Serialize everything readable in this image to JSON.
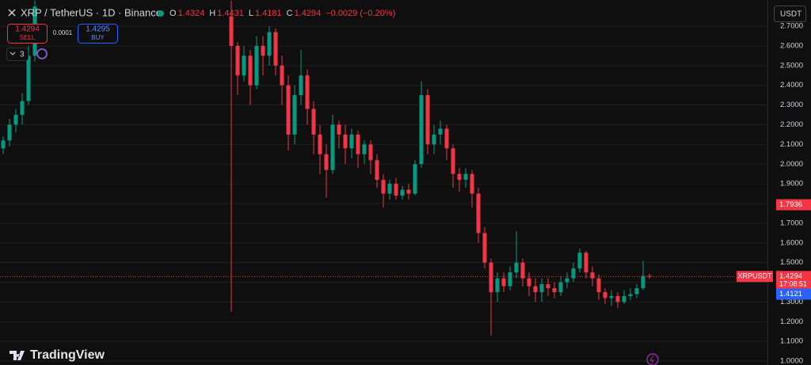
{
  "chart_data": {
    "type": "candlestick",
    "title": "XRP / TetherUS · 1D · Binance",
    "legend_ohlc": [
      {
        "label": "O",
        "value": 1.4324
      },
      {
        "label": "H",
        "value": 1.4431
      },
      {
        "label": "L",
        "value": 1.4181
      },
      {
        "label": "C",
        "value": 1.4294
      }
    ],
    "change": "−0.0029 (−0.20%)",
    "sell": {
      "price": 1.4294,
      "label": "SELL"
    },
    "spread": 0.0001,
    "buy": {
      "price": 1.4295,
      "label": "BUY"
    },
    "indicator_count": 3,
    "currency": "USDT",
    "brand": "TradingView",
    "up_color": "#089981",
    "down_color": "#f23645",
    "ylim": [
      0.98,
      2.833
    ],
    "yticks": [
      {
        "value": 1.0,
        "label": "1.0000"
      },
      {
        "value": 1.1,
        "label": "1.1000"
      },
      {
        "value": 1.2,
        "label": "1.2000"
      },
      {
        "value": 1.3,
        "label": "1.3000"
      },
      {
        "value": 1.4,
        "label": "1.4000"
      },
      {
        "value": 1.5,
        "label": "1.5000"
      },
      {
        "value": 1.6,
        "label": "1.6000"
      },
      {
        "value": 1.7,
        "label": "1.7000"
      },
      {
        "value": 1.8,
        "label": "1.8000"
      },
      {
        "value": 1.9,
        "label": "1.9000"
      },
      {
        "value": 2.0,
        "label": "2.0000"
      },
      {
        "value": 2.1,
        "label": "2.1000"
      },
      {
        "value": 2.2,
        "label": "2.2000"
      },
      {
        "value": 2.3,
        "label": "2.3000"
      },
      {
        "value": 2.4,
        "label": "2.4000"
      },
      {
        "value": 2.5,
        "label": "2.5000"
      },
      {
        "value": 2.6,
        "label": "2.6000"
      },
      {
        "value": 2.7,
        "label": "2.7000"
      }
    ],
    "grid": true,
    "price_tags": [
      {
        "value": 1.7936,
        "color": "#f23645"
      },
      {
        "name": "XRPUSDT",
        "value": 1.4294,
        "countdown": "17:08:51",
        "color": "#f23645"
      },
      {
        "value": 1.4121,
        "color": "#2962ff"
      }
    ],
    "series": {
      "open": [
        2.08,
        2.12,
        2.2,
        2.25,
        2.32,
        2.55,
        null,
        null,
        null,
        null,
        null,
        null,
        null,
        null,
        null,
        null,
        null,
        null,
        null,
        null,
        null,
        null,
        null,
        null,
        null,
        null,
        null,
        null,
        null,
        null,
        null,
        null,
        null,
        null,
        null,
        null,
        2.75,
        2.6,
        2.45,
        2.55,
        2.4,
        2.6,
        2.55,
        2.67,
        2.5,
        2.4,
        2.15,
        2.35,
        2.45,
        2.28,
        2.15,
        2.05,
        1.97,
        2.2,
        2.15,
        2.08,
        2.15,
        2.05,
        2.1,
        2.02,
        1.92,
        1.85,
        1.9,
        1.84,
        1.87,
        1.85,
        2.0,
        2.35,
        2.1,
        2.15,
        2.18,
        2.08,
        1.95,
        1.92,
        1.95,
        1.85,
        1.65,
        1.5,
        1.35,
        1.42,
        1.38,
        1.45,
        1.5,
        1.42,
        1.38,
        1.35,
        1.39,
        1.37,
        1.35,
        1.4,
        1.42,
        1.47,
        1.55,
        1.45,
        1.42,
        1.35,
        1.32,
        1.33,
        1.3,
        1.33,
        1.34,
        1.37,
        1.4324
      ],
      "high": [
        2.14,
        2.23,
        2.28,
        2.36,
        2.6,
        2.83,
        null,
        null,
        null,
        null,
        null,
        null,
        null,
        null,
        null,
        null,
        null,
        null,
        null,
        null,
        null,
        null,
        null,
        null,
        null,
        null,
        null,
        null,
        null,
        null,
        null,
        null,
        null,
        null,
        null,
        null,
        2.83,
        2.62,
        2.6,
        2.58,
        2.65,
        2.65,
        2.7,
        2.69,
        2.55,
        2.45,
        2.4,
        2.58,
        2.48,
        2.32,
        2.2,
        2.1,
        2.25,
        2.22,
        2.2,
        2.18,
        2.17,
        2.12,
        2.12,
        2.05,
        1.95,
        1.92,
        1.93,
        1.89,
        1.9,
        2.02,
        2.42,
        2.38,
        2.2,
        2.22,
        2.2,
        2.1,
        1.98,
        1.98,
        1.97,
        1.88,
        1.68,
        1.52,
        1.45,
        1.45,
        1.48,
        1.66,
        1.52,
        1.45,
        1.42,
        1.42,
        1.42,
        1.4,
        1.43,
        1.45,
        1.5,
        1.57,
        1.56,
        1.48,
        1.44,
        1.37,
        1.36,
        1.35,
        1.36,
        1.37,
        1.39,
        1.51,
        1.4431
      ],
      "low": [
        2.05,
        2.09,
        2.16,
        2.2,
        2.3,
        2.52,
        null,
        null,
        null,
        null,
        null,
        null,
        null,
        null,
        null,
        null,
        null,
        null,
        null,
        null,
        null,
        null,
        null,
        null,
        null,
        null,
        null,
        null,
        null,
        null,
        null,
        null,
        null,
        null,
        null,
        null,
        1.25,
        2.35,
        2.42,
        2.3,
        2.38,
        2.45,
        2.5,
        2.45,
        2.3,
        2.07,
        2.1,
        2.3,
        2.2,
        2.05,
        1.95,
        1.83,
        1.95,
        2.08,
        2.0,
        2.03,
        1.98,
        2.0,
        1.95,
        1.88,
        1.78,
        1.82,
        1.82,
        1.82,
        1.82,
        1.84,
        1.98,
        2.05,
        2.05,
        2.1,
        2.02,
        1.88,
        1.86,
        1.88,
        1.78,
        1.6,
        1.47,
        1.13,
        1.3,
        1.35,
        1.36,
        1.42,
        1.38,
        1.33,
        1.3,
        1.3,
        1.33,
        1.32,
        1.33,
        1.37,
        1.4,
        1.45,
        1.42,
        1.38,
        1.31,
        1.29,
        1.28,
        1.27,
        1.29,
        1.31,
        1.32,
        1.36,
        1.4181
      ],
      "close": [
        2.12,
        2.2,
        2.25,
        2.32,
        2.55,
        2.8,
        null,
        null,
        null,
        null,
        null,
        null,
        null,
        null,
        null,
        null,
        null,
        null,
        null,
        null,
        null,
        null,
        null,
        null,
        null,
        null,
        null,
        null,
        null,
        null,
        null,
        null,
        null,
        null,
        null,
        null,
        2.6,
        2.45,
        2.55,
        2.4,
        2.6,
        2.55,
        2.67,
        2.5,
        2.4,
        2.15,
        2.35,
        2.45,
        2.28,
        2.15,
        2.05,
        1.97,
        2.2,
        2.15,
        2.08,
        2.15,
        2.05,
        2.1,
        2.02,
        1.92,
        1.85,
        1.9,
        1.84,
        1.87,
        1.85,
        2.0,
        2.35,
        2.1,
        2.15,
        2.18,
        2.08,
        1.95,
        1.92,
        1.95,
        1.85,
        1.65,
        1.5,
        1.35,
        1.42,
        1.38,
        1.45,
        1.5,
        1.42,
        1.38,
        1.35,
        1.39,
        1.37,
        1.35,
        1.4,
        1.42,
        1.47,
        1.55,
        1.45,
        1.42,
        1.35,
        1.32,
        1.33,
        1.3,
        1.33,
        1.34,
        1.37,
        1.4324,
        1.4294
      ]
    }
  }
}
